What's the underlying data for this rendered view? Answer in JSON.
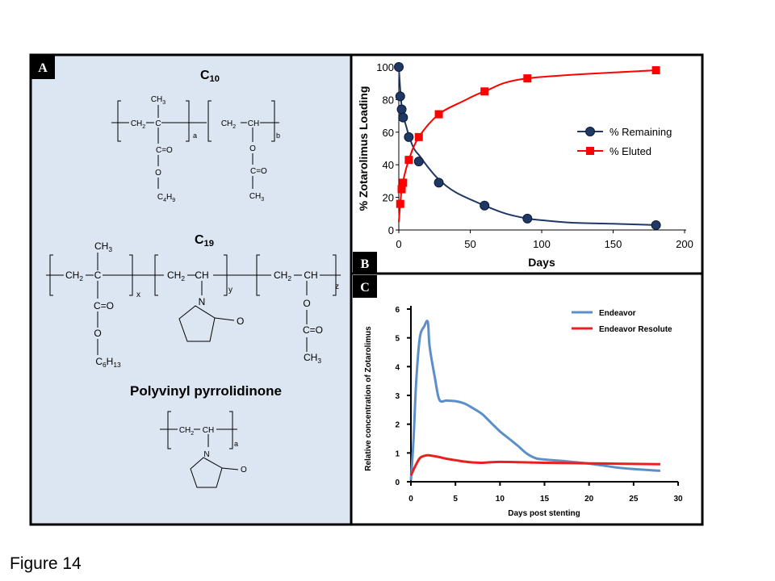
{
  "figure_caption": "Figure 14",
  "panels": {
    "a": {
      "letter": "A",
      "c10": {
        "title": "C10",
        "labels": {
          "ch3": "CH3",
          "ch2": "CH2",
          "c": "C",
          "ch2b": "CH2",
          "ch": "CH",
          "co": "C=O",
          "o1": "O",
          "c4h9": "C4H9",
          "o2": "O",
          "co2": "C=O",
          "ch3b": "CH3",
          "a": "a",
          "b": "b"
        }
      },
      "c19": {
        "title": "C19",
        "labels": {
          "ch3": "CH3",
          "ch2": "CH2",
          "c": "C",
          "x": "x",
          "ch2b": "CH2",
          "ch": "CH",
          "y": "y",
          "n": "N",
          "o_ring": "O",
          "ch2c": "CH2",
          "chc": "CH",
          "z": "z",
          "co": "C=O",
          "o1": "O",
          "c6h13": "C6H13",
          "o2": "O",
          "co2": "C=O",
          "ch3b": "CH3"
        }
      },
      "pvp": {
        "title": "Polyvinyl pyrrolidinone",
        "labels": {
          "ch2": "CH2",
          "ch": "CH",
          "a": "a",
          "n": "N",
          "o": "O"
        }
      }
    },
    "b": {
      "letter": "B"
    },
    "c": {
      "letter": "C"
    }
  },
  "colors": {
    "panel_a_bg": "#dce6f2",
    "remaining": "#1f3864",
    "eluted": "#ff0000",
    "endeavor": "#5b8fc9",
    "resolute": "#e8201e"
  },
  "chart_data": [
    {
      "type": "line",
      "panel": "B",
      "xlabel": "Days",
      "ylabel": "% Zotarolimus Loading",
      "xlim": [
        0,
        200
      ],
      "ylim": [
        0,
        100
      ],
      "xticks": [
        0,
        50,
        100,
        150,
        200
      ],
      "yticks": [
        0,
        20,
        40,
        60,
        80,
        100
      ],
      "legend_position": "right",
      "series": [
        {
          "name": "% Remaining",
          "marker": "circle",
          "points": [
            [
              0,
              100
            ],
            [
              1,
              82
            ],
            [
              2,
              74
            ],
            [
              3,
              69
            ],
            [
              7,
              57
            ],
            [
              14,
              42
            ],
            [
              28,
              29
            ],
            [
              60,
              15
            ],
            [
              90,
              7
            ],
            [
              180,
              3
            ]
          ],
          "curve": [
            [
              0,
              100
            ],
            [
              2,
              76
            ],
            [
              5,
              64
            ],
            [
              10,
              51
            ],
            [
              15,
              45
            ],
            [
              20,
              39
            ],
            [
              28,
              31
            ],
            [
              40,
              23
            ],
            [
              60,
              15
            ],
            [
              75,
              10
            ],
            [
              90,
              7
            ],
            [
              100,
              6
            ],
            [
              120,
              4.5
            ],
            [
              150,
              3.8
            ],
            [
              180,
              3
            ]
          ]
        },
        {
          "name": "% Eluted",
          "marker": "square",
          "points": [
            [
              1,
              16
            ],
            [
              2,
              25
            ],
            [
              3,
              29
            ],
            [
              7,
              43
            ],
            [
              14,
              57
            ],
            [
              28,
              71
            ],
            [
              60,
              85
            ],
            [
              90,
              93
            ],
            [
              180,
              98
            ]
          ],
          "curve": [
            [
              0,
              5
            ],
            [
              1,
              16
            ],
            [
              2,
              25
            ],
            [
              3,
              30
            ],
            [
              7,
              43
            ],
            [
              14,
              57
            ],
            [
              28,
              71
            ],
            [
              45,
              79
            ],
            [
              60,
              85
            ],
            [
              90,
              93
            ],
            [
              180,
              98
            ]
          ]
        }
      ]
    },
    {
      "type": "line",
      "panel": "C",
      "xlabel": "Days post stenting",
      "ylabel": "Relative concentration of Zotarolimus",
      "xlim": [
        0,
        30
      ],
      "ylim": [
        0,
        6
      ],
      "xticks": [
        0,
        5,
        10,
        15,
        20,
        25,
        30
      ],
      "yticks": [
        0,
        1,
        2,
        3,
        4,
        5,
        6
      ],
      "legend_position": "top-right",
      "series": [
        {
          "name": "Endeavor",
          "points": [
            [
              0,
              0.05
            ],
            [
              0.3,
              1.5
            ],
            [
              0.6,
              3.5
            ],
            [
              1.0,
              5.0
            ],
            [
              1.5,
              5.4
            ],
            [
              1.9,
              5.55
            ],
            [
              2.1,
              4.7
            ],
            [
              2.7,
              3.6
            ],
            [
              3.2,
              2.85
            ],
            [
              4,
              2.82
            ],
            [
              5,
              2.8
            ],
            [
              6,
              2.72
            ],
            [
              7,
              2.55
            ],
            [
              8,
              2.35
            ],
            [
              9,
              2.05
            ],
            [
              10,
              1.75
            ],
            [
              11,
              1.5
            ],
            [
              12,
              1.25
            ],
            [
              13,
              0.98
            ],
            [
              14,
              0.82
            ],
            [
              15,
              0.77
            ],
            [
              17,
              0.72
            ],
            [
              20,
              0.63
            ],
            [
              23,
              0.5
            ],
            [
              25,
              0.44
            ],
            [
              28,
              0.38
            ]
          ]
        },
        {
          "name": "Endeavor Resolute",
          "points": [
            [
              0,
              0.22
            ],
            [
              0.5,
              0.55
            ],
            [
              1,
              0.82
            ],
            [
              1.5,
              0.9
            ],
            [
              2,
              0.92
            ],
            [
              3,
              0.87
            ],
            [
              4,
              0.8
            ],
            [
              5,
              0.75
            ],
            [
              6,
              0.7
            ],
            [
              7,
              0.67
            ],
            [
              8,
              0.66
            ],
            [
              9,
              0.68
            ],
            [
              10,
              0.69
            ],
            [
              12,
              0.68
            ],
            [
              15,
              0.66
            ],
            [
              20,
              0.64
            ],
            [
              25,
              0.62
            ],
            [
              28,
              0.61
            ]
          ]
        }
      ]
    }
  ]
}
